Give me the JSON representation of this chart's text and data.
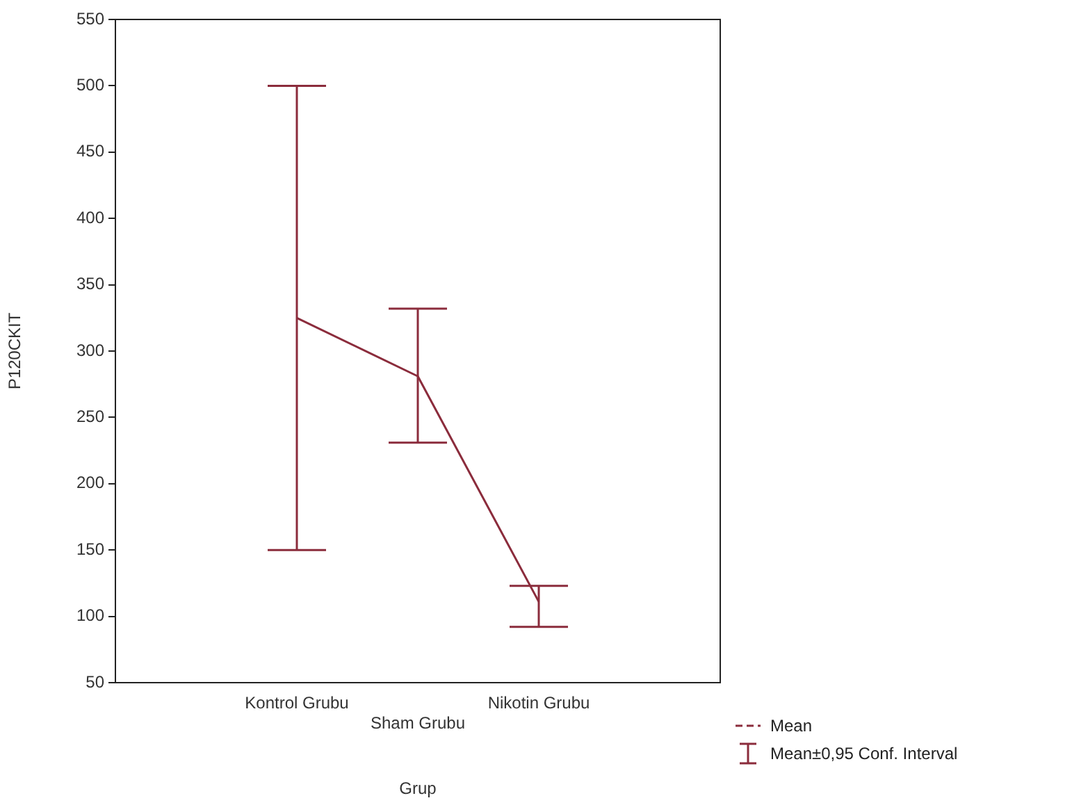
{
  "chart_data": {
    "type": "line",
    "xlabel": "Grup",
    "ylabel": "P120CKIT",
    "categories": [
      "Kontrol Grubu",
      "Sham Grubu",
      "Nikotin Grubu"
    ],
    "series": [
      {
        "name": "Mean",
        "color": "#8b2c3c",
        "values": [
          325,
          281,
          111
        ],
        "errors": [
          [
            150,
            500
          ],
          [
            231,
            332
          ],
          [
            92,
            123
          ]
        ]
      }
    ],
    "ylim": [
      50,
      550
    ],
    "yticks": [
      50,
      100,
      150,
      200,
      250,
      300,
      350,
      400,
      450,
      500,
      550
    ],
    "grid": false,
    "legend": "bottom right",
    "marker": "none",
    "line_style": "solid",
    "annotations": [
      "Mean±0,95 Conf. Interval"
    ]
  }
}
